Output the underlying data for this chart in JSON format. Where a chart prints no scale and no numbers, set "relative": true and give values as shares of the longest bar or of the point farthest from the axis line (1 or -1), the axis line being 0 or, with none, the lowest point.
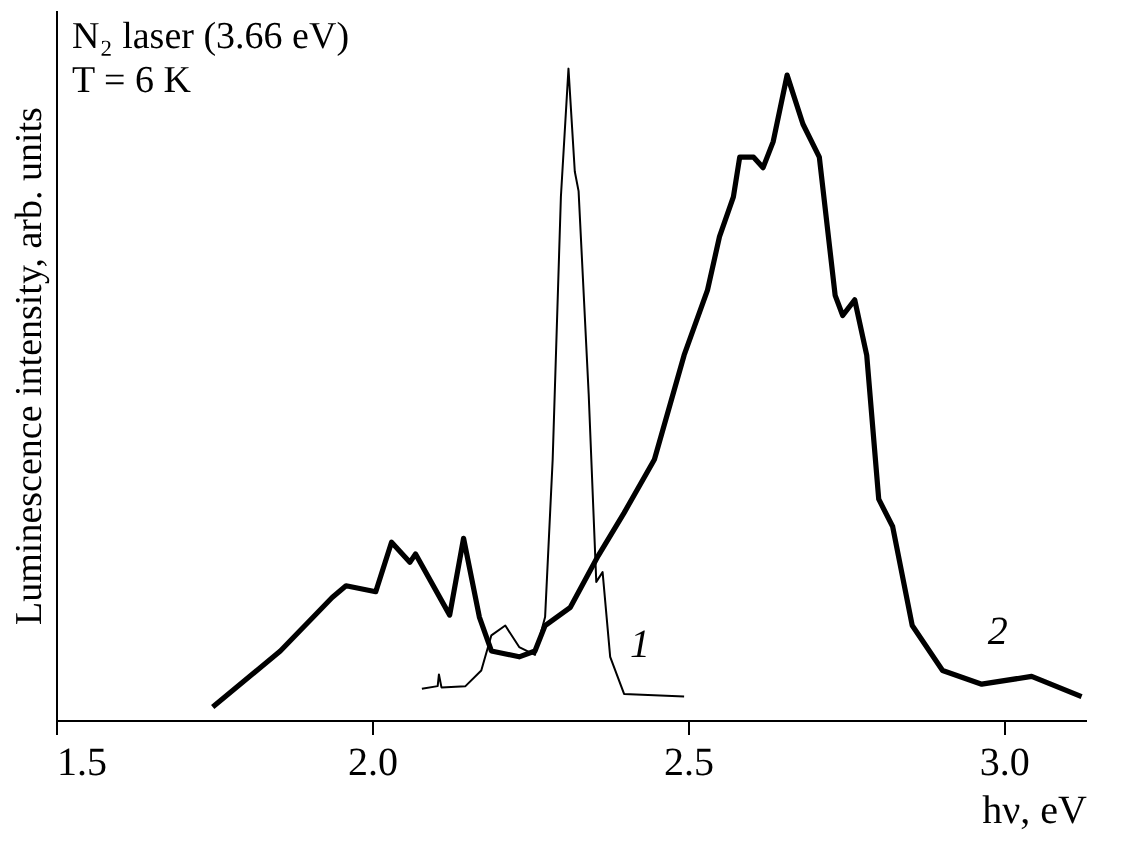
{
  "chart_data": {
    "type": "line",
    "relative": true,
    "xlabel": "hν, eV",
    "ylabel": "Luminescence intensity, arb. units",
    "xlim": [
      1.5,
      3.13
    ],
    "xticks": [
      {
        "value": 1.5,
        "label": "1.5"
      },
      {
        "value": 2.0,
        "label": "2.0"
      },
      {
        "value": 2.5,
        "label": "2.5"
      },
      {
        "value": 3.0,
        "label": "3.0"
      }
    ],
    "annotations": [
      "N₂ laser (3.66 eV)",
      "T = 6 K"
    ],
    "legend": false,
    "grid": false,
    "marker": "none",
    "line_style": "solid",
    "series": [
      {
        "name": "1",
        "color": "#000000",
        "x": [
          2.079,
          2.104,
          2.106,
          2.11,
          2.148,
          2.173,
          2.189,
          2.211,
          2.233,
          2.258,
          2.274,
          2.286,
          2.299,
          2.311,
          2.321,
          2.327,
          2.343,
          2.355,
          2.365,
          2.377,
          2.399,
          2.494
        ],
        "values": [
          0.048,
          0.052,
          0.07,
          0.05,
          0.052,
          0.076,
          0.13,
          0.145,
          0.112,
          0.1,
          0.158,
          0.4,
          0.803,
          1.0,
          0.842,
          0.812,
          0.5,
          0.212,
          0.227,
          0.097,
          0.04,
          0.036
        ]
      },
      {
        "name": "2",
        "color": "#000000",
        "x": [
          1.748,
          1.855,
          1.937,
          1.959,
          2.006,
          2.031,
          2.06,
          2.069,
          2.123,
          2.145,
          2.17,
          2.189,
          2.233,
          2.258,
          2.274,
          2.314,
          2.358,
          2.399,
          2.447,
          2.494,
          2.531,
          2.55,
          2.572,
          2.582,
          2.604,
          2.619,
          2.635,
          2.657,
          2.682,
          2.708,
          2.733,
          2.745,
          2.764,
          2.783,
          2.802,
          2.824,
          2.855,
          2.903,
          2.965,
          3.044,
          3.123
        ],
        "values": [
          0.02,
          0.106,
          0.188,
          0.206,
          0.197,
          0.273,
          0.242,
          0.255,
          0.161,
          0.279,
          0.158,
          0.106,
          0.097,
          0.106,
          0.145,
          0.173,
          0.252,
          0.318,
          0.4,
          0.56,
          0.66,
          0.742,
          0.803,
          0.864,
          0.864,
          0.848,
          0.888,
          0.99,
          0.915,
          0.864,
          0.652,
          0.621,
          0.645,
          0.56,
          0.339,
          0.297,
          0.145,
          0.076,
          0.055,
          0.067,
          0.036
        ]
      }
    ]
  }
}
